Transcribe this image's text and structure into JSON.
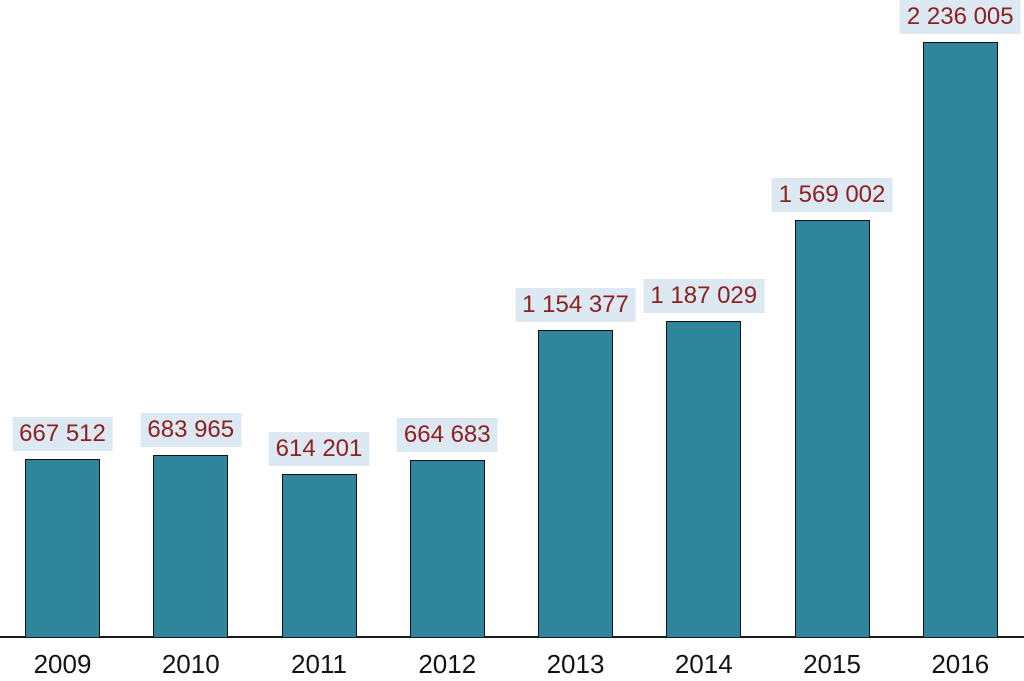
{
  "chart_data": {
    "type": "bar",
    "categories": [
      "2009",
      "2010",
      "2011",
      "2012",
      "2013",
      "2014",
      "2015",
      "2016"
    ],
    "values": [
      667512,
      683965,
      614201,
      664683,
      1154377,
      1187029,
      1569002,
      2236005
    ],
    "value_labels": [
      "667 512",
      "683 965",
      "614 201",
      "664 683",
      "1 154 377",
      "1 187 029",
      "1 569 002",
      "2 236 005"
    ],
    "title": "",
    "xlabel": "",
    "ylabel": "",
    "ylim": [
      0,
      2236005
    ],
    "grid": false,
    "legend": false,
    "colors": {
      "background": "#ffffff",
      "bar_fill": "#2f869c",
      "bar_border": "#111111",
      "value_label_text": "#8e2020",
      "value_label_bg": "#dce9f2",
      "axis_line": "#1a1a1a",
      "tick_label_text": "#131313"
    }
  }
}
